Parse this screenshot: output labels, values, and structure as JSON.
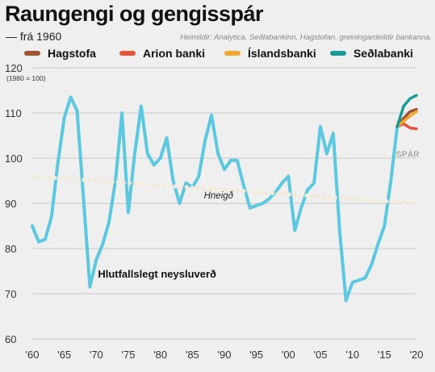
{
  "header": {
    "title": "Raungengi og gengisspár",
    "subtitle": "— frá 1960",
    "source": "Heimildir: Analytica, Seðlabankinn, Hagstofan, greiningardeildir bankanna."
  },
  "legend": [
    {
      "name": "Hagstofa",
      "color": "#a0522d"
    },
    {
      "name": "Arion banki",
      "color": "#e8543a"
    },
    {
      "name": "Íslandsbanki",
      "color": "#f0a830"
    },
    {
      "name": "Seðlabanki",
      "color": "#169b9b"
    }
  ],
  "chart_data": {
    "type": "line",
    "ylabel": "(1980 = 100)",
    "ylim": [
      60,
      120
    ],
    "xlim": [
      1960,
      2020
    ],
    "yticks": [
      60,
      70,
      80,
      90,
      100,
      110,
      120
    ],
    "xticks": [
      1960,
      1965,
      1970,
      1975,
      1980,
      1985,
      1990,
      1995,
      2000,
      2005,
      2010,
      2015,
      2020
    ],
    "xtick_labels": [
      "'60",
      "'65",
      "'70",
      "'75",
      "'80",
      "'85",
      "'90",
      "'95",
      "'00",
      "'05",
      "'10",
      "'15",
      "'20"
    ],
    "grid": true,
    "annotations": {
      "series_label": "Hlutfallslegt neysluverð",
      "trend_label": "Hneigð",
      "forecast_label": "SPÁR"
    },
    "series": [
      {
        "name": "Hlutfallslegt neysluverð",
        "color": "#5bc8e0",
        "points": [
          [
            1960,
            85
          ],
          [
            1961,
            81.5
          ],
          [
            1962,
            82
          ],
          [
            1963,
            87
          ],
          [
            1964,
            99
          ],
          [
            1965,
            109
          ],
          [
            1966,
            113.5
          ],
          [
            1967,
            110.5
          ],
          [
            1968,
            91
          ],
          [
            1969,
            71.5
          ],
          [
            1970,
            77.5
          ],
          [
            1971,
            81
          ],
          [
            1972,
            86
          ],
          [
            1973,
            95
          ],
          [
            1974,
            110
          ],
          [
            1975,
            88
          ],
          [
            1976,
            101
          ],
          [
            1977,
            111.5
          ],
          [
            1978,
            101
          ],
          [
            1979,
            98.5
          ],
          [
            1980,
            100
          ],
          [
            1981,
            104.5
          ],
          [
            1982,
            95
          ],
          [
            1983,
            90
          ],
          [
            1984,
            94.5
          ],
          [
            1985,
            93.5
          ],
          [
            1986,
            96
          ],
          [
            1987,
            104
          ],
          [
            1988,
            109.5
          ],
          [
            1989,
            101
          ],
          [
            1990,
            97.5
          ],
          [
            1991,
            99.5
          ],
          [
            1992,
            99.5
          ],
          [
            1993,
            94
          ],
          [
            1994,
            89
          ],
          [
            1995,
            89.5
          ],
          [
            1996,
            90
          ],
          [
            1997,
            91
          ],
          [
            1998,
            92.5
          ],
          [
            1999,
            94.5
          ],
          [
            2000,
            96
          ],
          [
            2001,
            84
          ],
          [
            2002,
            89
          ],
          [
            2003,
            93
          ],
          [
            2004,
            94.5
          ],
          [
            2005,
            107
          ],
          [
            2006,
            101
          ],
          [
            2007,
            105.5
          ],
          [
            2008,
            84
          ],
          [
            2009,
            68.5
          ],
          [
            2010,
            72.5
          ],
          [
            2011,
            73
          ],
          [
            2012,
            73.5
          ],
          [
            2013,
            76.5
          ],
          [
            2014,
            81
          ],
          [
            2015,
            85
          ],
          [
            2016,
            95
          ],
          [
            2017,
            107
          ]
        ]
      },
      {
        "name": "Hneigð",
        "color": "#f3ebd8",
        "dashed": true,
        "points": [
          [
            1960,
            96
          ],
          [
            2020,
            90
          ]
        ]
      },
      {
        "name": "Hagstofa",
        "color": "#a0522d",
        "points": [
          [
            2017,
            107
          ],
          [
            2018,
            108.8
          ],
          [
            2019,
            110.3
          ],
          [
            2020,
            110.8
          ]
        ]
      },
      {
        "name": "Arion banki",
        "color": "#e8543a",
        "points": [
          [
            2017,
            107
          ],
          [
            2018,
            107.6
          ],
          [
            2019,
            106.7
          ],
          [
            2020,
            106.5
          ]
        ]
      },
      {
        "name": "Íslandsbanki",
        "color": "#f0a830",
        "points": [
          [
            2017,
            107
          ],
          [
            2018,
            108.2
          ],
          [
            2019,
            109.3
          ],
          [
            2020,
            110.3
          ]
        ]
      },
      {
        "name": "Seðlabanki",
        "color": "#169b9b",
        "points": [
          [
            2017,
            107
          ],
          [
            2018,
            111.5
          ],
          [
            2019,
            113.2
          ],
          [
            2020,
            113.9
          ]
        ]
      }
    ]
  }
}
